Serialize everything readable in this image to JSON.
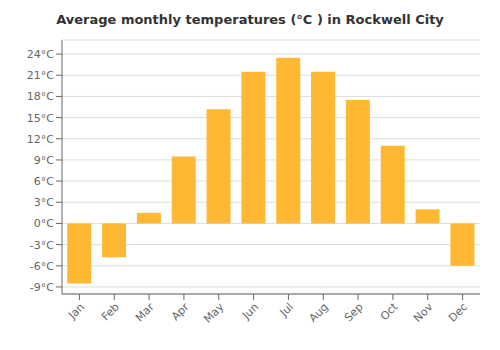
{
  "chart_data": {
    "type": "bar",
    "title": "Average monthly temperatures (°C ) in Rockwell City",
    "categories": [
      "Jan",
      "Feb",
      "Mar",
      "Apr",
      "May",
      "Jun",
      "Jul",
      "Aug",
      "Sep",
      "Oct",
      "Nov",
      "Dec"
    ],
    "values": [
      -8.5,
      -4.8,
      1.5,
      9.5,
      16.2,
      21.5,
      23.5,
      21.5,
      17.5,
      11.0,
      2.0,
      -6.0
    ],
    "color": "#FFB833",
    "ylim": [
      -10,
      26
    ],
    "yticks": [
      {
        "value": -9,
        "label": "-9°C"
      },
      {
        "value": -6,
        "label": "-6°C"
      },
      {
        "value": -3,
        "label": "-3°C"
      },
      {
        "value": 0,
        "label": "0°C"
      },
      {
        "value": 3,
        "label": "3°C"
      },
      {
        "value": 6,
        "label": "6°C"
      },
      {
        "value": 9,
        "label": "9°C"
      },
      {
        "value": 12,
        "label": "12°C"
      },
      {
        "value": 15,
        "label": "15°C"
      },
      {
        "value": 18,
        "label": "18°C"
      },
      {
        "value": 21,
        "label": "21°C"
      },
      {
        "value": 24,
        "label": "24°C"
      }
    ],
    "grid": true
  }
}
